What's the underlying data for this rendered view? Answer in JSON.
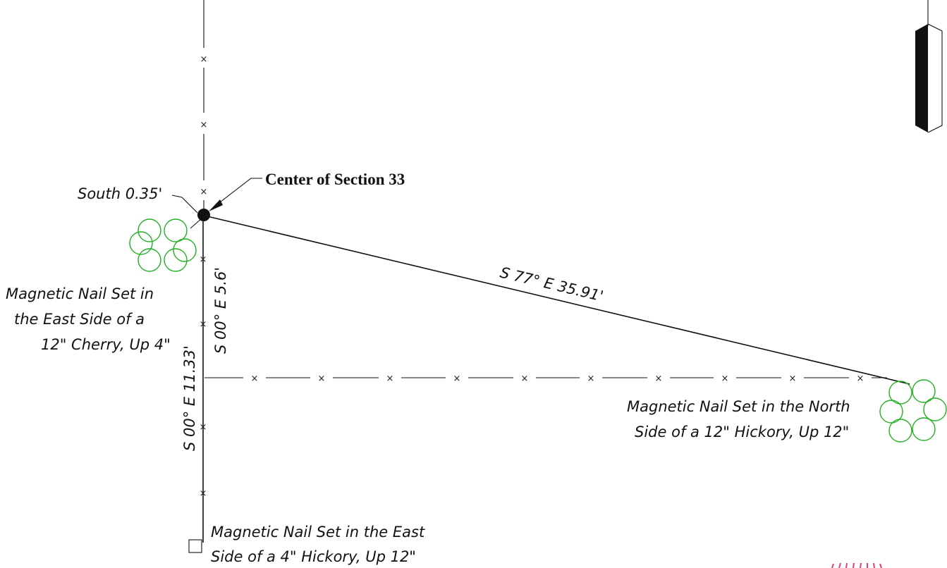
{
  "callout": {
    "center_label": "Center of Section 33",
    "offset_label": "South 0.35'"
  },
  "bearings": {
    "diagonal": "S 77° E  35.91'",
    "short_vertical": "S 00° E  5.6'",
    "long_vertical": "S 00° E  11.33'"
  },
  "witness_trees": {
    "cherry": [
      "Magnetic Nail Set in",
      "the East Side of a",
      "12\" Cherry, Up 4\""
    ],
    "hickory_north": [
      "Magnetic Nail Set in the North",
      "Side of a 12\" Hickory, Up 12\""
    ],
    "hickory_east": [
      "Magnetic Nail Set in the East",
      "Side of a 4\" Hickory, Up 12\""
    ]
  },
  "fence_marker": "×",
  "colors": {
    "linework": "#111111",
    "tree_symbol": "#22b022",
    "stamp": "#e0407a"
  },
  "icons": {
    "north_arrow": "north-arrow-icon",
    "tree": "tree-symbol-icon",
    "monument": "monument-dot-icon",
    "corner_box": "corner-box-icon"
  }
}
